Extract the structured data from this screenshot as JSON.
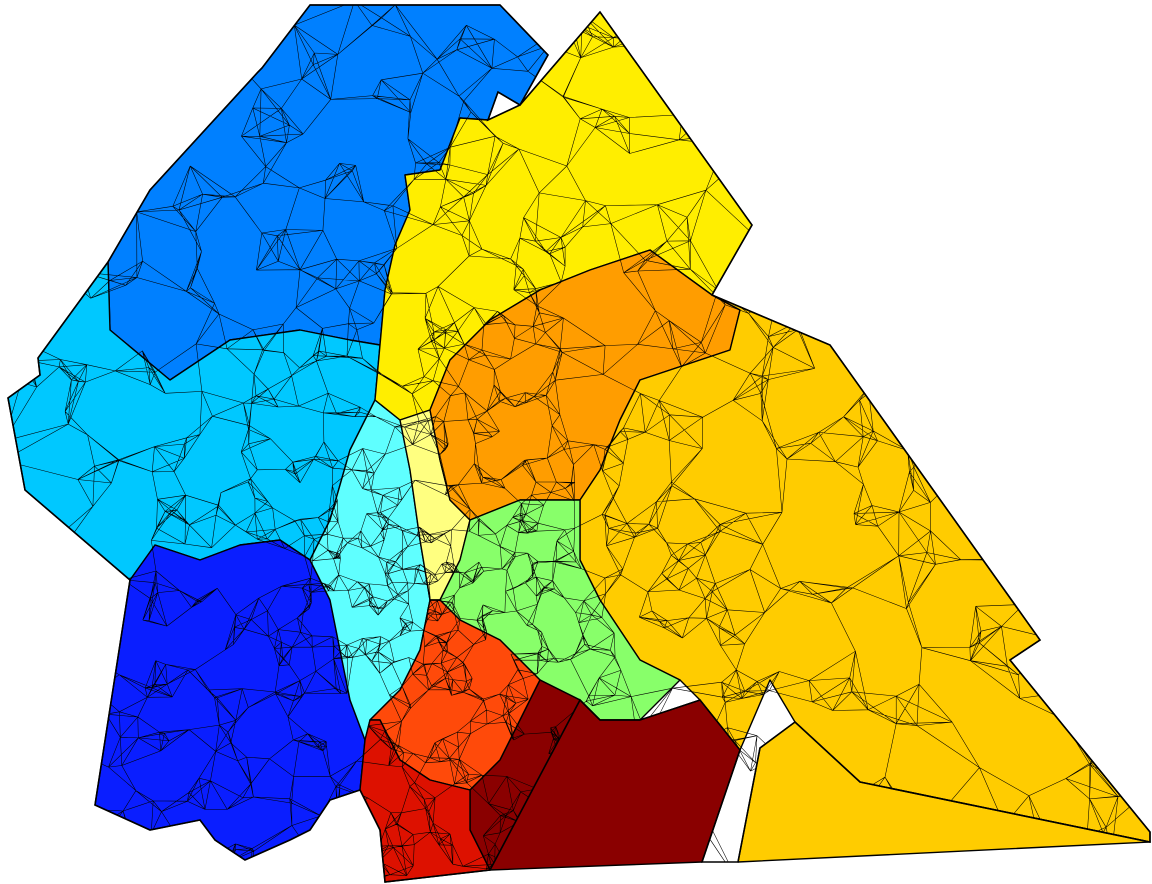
{
  "figure": {
    "kind": "partitioned triangular finite-element mesh",
    "background": "#ffffff",
    "edge_color": "#000000",
    "partitions": [
      {
        "name": "dark-blue-north",
        "color": "#0080ff"
      },
      {
        "name": "cyan-west",
        "color": "#00c8ff"
      },
      {
        "name": "blue-southwest",
        "color": "#0a1eff"
      },
      {
        "name": "light-cyan-center",
        "color": "#5fffff"
      },
      {
        "name": "yellow-north",
        "color": "#ffee00"
      },
      {
        "name": "light-yellow-center",
        "color": "#ffff80"
      },
      {
        "name": "orange-center",
        "color": "#ff9d00"
      },
      {
        "name": "gold-east",
        "color": "#ffcc00"
      },
      {
        "name": "light-green-center",
        "color": "#88ff6a"
      },
      {
        "name": "red-orange-south",
        "color": "#ff4a0a"
      },
      {
        "name": "dark-red-south",
        "color": "#8a0000"
      },
      {
        "name": "red-coast",
        "color": "#dd1100"
      },
      {
        "name": "gold-southeast-island",
        "color": "#ffcc00"
      }
    ]
  }
}
